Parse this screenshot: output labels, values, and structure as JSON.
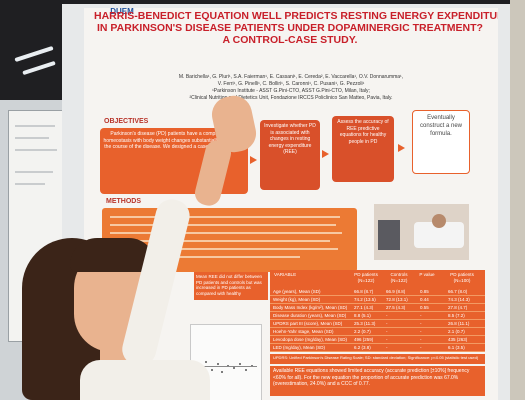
{
  "poster": {
    "logo": "DUEM",
    "title_lines": [
      "HARRIS-BENEDICT EQUATION WELL PREDICTS RESTING ENERGY EXPENDITURE",
      "IN PARKINSON'S DISEASE PATIENTS UNDER DOPAMINERGIC TREATMENT?",
      "A CONTROL-CASE STUDY."
    ],
    "authors_lines": [
      "M. Barichella¹, G. Pluri¹, S.A. Faierman¹, E. Cassani¹, E. Cereda², E. Vaccarella¹, O.V. Donnarumma¹,",
      "V. Ferri¹, G. Pinelli¹, C. Bolliri¹, S. Caronni¹, C. Pusani¹, G. Pezzoli¹",
      "¹Parkinson Institute - ASST G.Pini-CTO, ASST G.Pini-CTO, Milan, Italy;",
      "²Clinical Nutrition and Dietetics Unit, Fondazione IRCCS Policlinico San Matteo, Pavia, Italy."
    ],
    "objectives": {
      "heading": "OBJECTIVES",
      "box1": "Parkinson's disease (PD) patients have a complex weight homeostasis with body weight changes substantially throughout the course of the disease. We designed a case-control study to",
      "box2": "Investigate whether PD is associated with changes in resting energy expenditure (REE)",
      "box3": "Assess the accuracy of REE predictive equations for healthy people in PD",
      "box4": "Eventually construct a new formula."
    },
    "methods": {
      "heading": "METHODS",
      "text": "Measured REE (mREE) was compared in 122 PD patients and 122 sex and body mass index (BMI)-matched controls. mREE was also compared with REE by 5 common equations (Harris-Benedict-1919, Mifflin-St. Jeor, WHO/FAO and aggregate equation), Bland-Altman analysis and reported as the frequency of accurate predictions (±10%), concordance correlation coefficients (CCC) were also computed. Then, we developed a new equation - using sex, age, weight, height and levodopa equivalent dose (LED) - in an independent sample (N=100)."
    },
    "results_note": "Mean REE did not differ between PD patients and controls but was increased in PD patients as compared with healthy",
    "table": {
      "headers": [
        "VARIABLE",
        "PD patients (N=122)",
        "Controls (N=122)",
        "P value",
        "PD patients (N=100)"
      ],
      "rows": [
        [
          "Age (years), Mean (SD)",
          "66.8 (8.7)",
          "66.9 (8.8)",
          "0.85",
          "66.7 (8.0)"
        ],
        [
          "Weight (kg), Mean (SD)",
          "74.2 (13.5)",
          "72.8 (13.1)",
          "0.44",
          "74.3 (14.3)"
        ],
        [
          "Body Mass Index (kg/m²), Mean (SD)",
          "27.1 (4.3)",
          "27.5 (4.3)",
          "0.55",
          "27.8 (4.7)"
        ],
        [
          "Disease duration (years), Mean (SD)",
          "8.8 (5.1)",
          "-",
          "-",
          "8.5 (7.2)"
        ],
        [
          "UPDRS part III (score), Mean (SD)",
          "25.3 (11.3)",
          "-",
          "-",
          "26.8 (11.1)"
        ],
        [
          "Hoehn-Yahr stage, Mean (SD)",
          "2.2 (0.7)",
          "-",
          "-",
          "2.1 (0.7)"
        ],
        [
          "Levodopa dose (mg/day), Mean (SD)",
          "496 (259)",
          "-",
          "-",
          "435 (263)"
        ],
        [
          "LED (mg/day), Mean (SD)",
          "6.2 (3.8)",
          "-",
          "-",
          "6.1 (3.5)"
        ]
      ],
      "footnote": "UPDRS: Unified Parkinson's Disease Rating Scale; SD: standard deviation; Significance: p<0.05 (statistic test used)"
    },
    "conclusion": "Available REE equations showed limited accuracy (accurate prediction [±10%] frequency <60% for all). For the new equation the proportion of accurate prediction was 67.0% (overestimation, 24.0%) and a CCC of 0.77."
  },
  "colors": {
    "accent": "#e8612c",
    "title": "#c8202a",
    "poster_bg": "#f6f4f1"
  }
}
